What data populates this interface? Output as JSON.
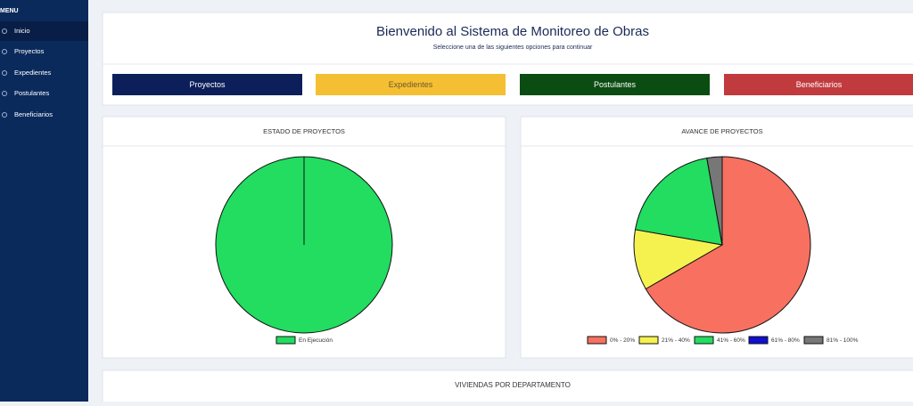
{
  "sidebar": {
    "heading": "MENU",
    "items": [
      "Inicio",
      "Proyectos",
      "Expedientes",
      "Postulantes",
      "Beneficiarios"
    ]
  },
  "header": {
    "title": "Bienvenido al Sistema de Monitoreo de Obras",
    "subtitle": "Seleccione una de las siguientes opciones para continuar"
  },
  "buttons": [
    {
      "label": "Proyectos",
      "color": "#0c1f5a"
    },
    {
      "label": "Expedientes",
      "color": "#f5bf33"
    },
    {
      "label": "Postulantes",
      "color": "#0b4c12"
    },
    {
      "label": "Beneficiarios",
      "color": "#c13a3e"
    }
  ],
  "chart_data": [
    {
      "type": "pie",
      "title": "ESTADO DE PROYECTOS",
      "categories": [
        "En Ejecución"
      ],
      "values": [
        1
      ],
      "colors": [
        "#22dd60"
      ]
    },
    {
      "type": "pie",
      "title": "AVANCE DE PROYECTOS",
      "categories": [
        "0% - 20%",
        "21% - 40%",
        "41% - 60%",
        "61% - 80%",
        "81% - 100%"
      ],
      "values": [
        24,
        4,
        7,
        0,
        1
      ],
      "colors": [
        "#f87060",
        "#f5f250",
        "#22dd60",
        "#1010d0",
        "#777777"
      ]
    }
  ],
  "bottom_card": {
    "title": "VIVIENDAS POR DEPARTAMENTO"
  }
}
